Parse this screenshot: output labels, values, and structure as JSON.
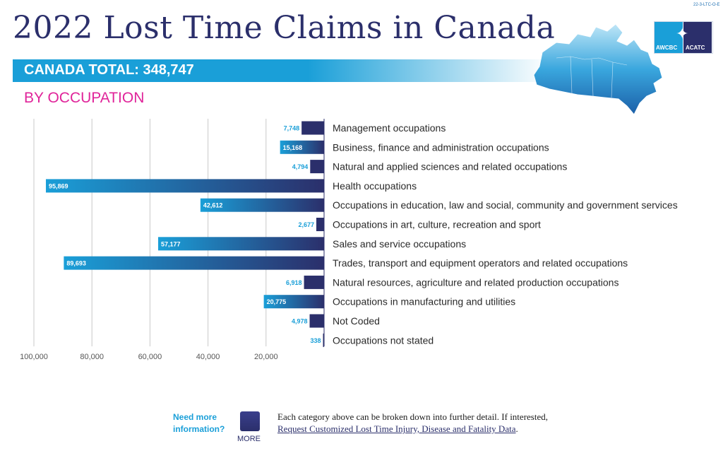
{
  "header": {
    "title": "2022 Lost Time Claims in Canada",
    "doc_code": "22-3-LTC-O-E",
    "total_label": "CANADA TOTAL: 348,747",
    "subtitle": "BY OCCUPATION",
    "logo_left_text": "AWCBC",
    "logo_right_text": "ACATC"
  },
  "colors": {
    "navy": "#2b2f6b",
    "blue": "#1a9fd8",
    "magenta": "#e0249a",
    "grid": "#c9c9c9"
  },
  "chart_data": {
    "type": "bar",
    "orientation": "horizontal",
    "direction": "right-to-left",
    "categories": [
      "Management occupations",
      "Business, finance and administration occupations",
      "Natural and applied sciences and related occupations",
      "Health occupations",
      "Occupations in education, law and social, community and government services",
      "Occupations in art, culture, recreation and sport",
      "Sales and service occupations",
      "Trades, transport and equipment operators and related occupations",
      "Natural resources, agriculture and related production occupations",
      "Occupations in manufacturing and utilities",
      "Not Coded",
      "Occupations not stated"
    ],
    "values": [
      7748,
      15168,
      4794,
      95869,
      42612,
      2677,
      57177,
      89693,
      6918,
      20775,
      4978,
      338
    ],
    "value_labels": [
      "7,748",
      "15,168",
      "4,794",
      "95,869",
      "42,612",
      "2,677",
      "57,177",
      "89,693",
      "6,918",
      "20,775",
      "4,978",
      "338"
    ],
    "x_ticks": [
      100000,
      80000,
      60000,
      40000,
      20000
    ],
    "x_tick_labels": [
      "100,000",
      "80,000",
      "60,000",
      "40,000",
      "20,000"
    ],
    "xlim": [
      0,
      100000
    ],
    "grid": true
  },
  "footer": {
    "question": "Need more information?",
    "more_label": "MORE",
    "text_line1": "Each category above can be broken down into further detail. If interested,",
    "link_text": "Request Customized Lost Time Injury, Disease and Fatality Data",
    "link_suffix": "."
  }
}
